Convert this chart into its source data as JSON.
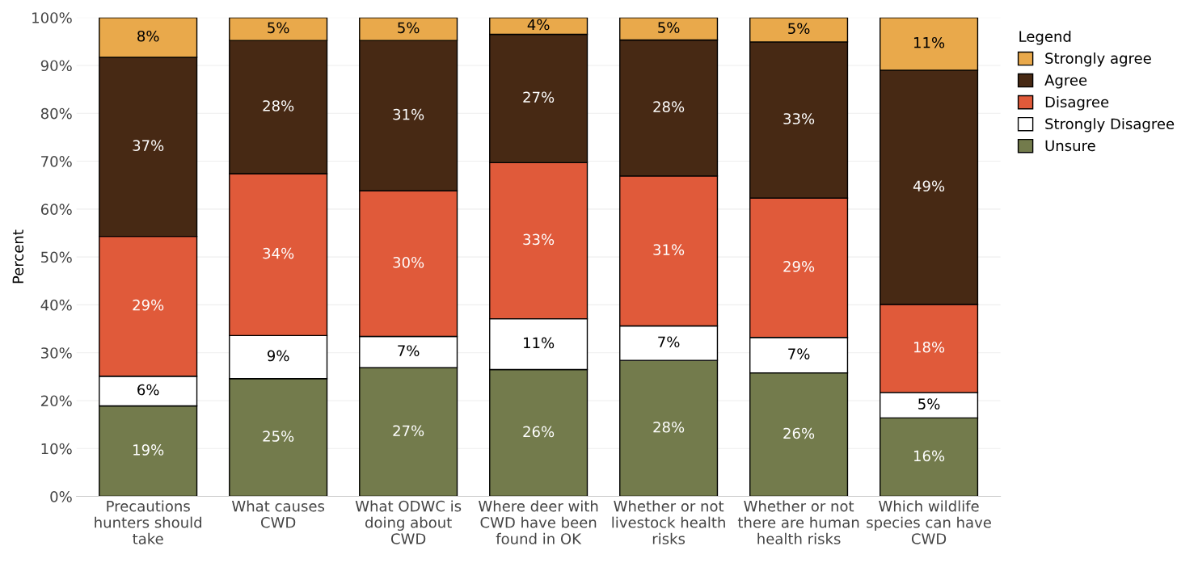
{
  "chart_data": {
    "type": "bar",
    "stacked": true,
    "ylabel": "Percent",
    "legend_title": "Legend",
    "legend": "top right",
    "grid": "y",
    "categories": [
      "Precautions\nhunters should\ntake",
      "What causes\nCWD",
      "What ODWC is\ndoing about\nCWD",
      "Where deer with\nCWD have been\nfound in OK",
      "Whether or not\nlivestock health\nrisks",
      "Whether or not\nthere are human\nhealth risks",
      "Which wildlife\nspecies can have\nCWD"
    ],
    "ylim": [
      0,
      100
    ],
    "yticks": [
      {
        "value": 0,
        "label": "0%"
      },
      {
        "value": 10,
        "label": "10%"
      },
      {
        "value": 20,
        "label": "20%"
      },
      {
        "value": 30,
        "label": "30%"
      },
      {
        "value": 40,
        "label": "40%"
      },
      {
        "value": 50,
        "label": "50%"
      },
      {
        "value": 60,
        "label": "60%"
      },
      {
        "value": 70,
        "label": "70%"
      },
      {
        "value": 80,
        "label": "80%"
      },
      {
        "value": 90,
        "label": "90%"
      },
      {
        "value": 100,
        "label": "100%"
      }
    ],
    "series": [
      {
        "name": "Unsure",
        "color": "#737b4c",
        "values": [
          18.9,
          24.6,
          26.9,
          26.5,
          28.4,
          25.8,
          16.4
        ],
        "value_labels": [
          "19%",
          "25%",
          "27%",
          "26%",
          "28%",
          "26%",
          "16%"
        ]
      },
      {
        "name": "Strongly Disagree",
        "color": "#ffffff",
        "values": [
          6.2,
          9.0,
          6.5,
          10.6,
          7.2,
          7.4,
          5.3
        ],
        "value_labels": [
          "6%",
          "9%",
          "7%",
          "11%",
          "7%",
          "7%",
          "5%"
        ]
      },
      {
        "name": "Disagree",
        "color": "#e05a3a",
        "values": [
          29.2,
          33.8,
          30.4,
          32.6,
          31.3,
          29.1,
          18.4
        ],
        "value_labels": [
          "29%",
          "34%",
          "30%",
          "33%",
          "31%",
          "29%",
          "18%"
        ]
      },
      {
        "name": "Agree",
        "color": "#472914",
        "values": [
          37.4,
          27.8,
          31.4,
          26.8,
          28.4,
          32.6,
          48.9
        ],
        "value_labels": [
          "37%",
          "28%",
          "31%",
          "27%",
          "28%",
          "33%",
          "49%"
        ]
      },
      {
        "name": "Strongly agree",
        "color": "#e9a94b",
        "values": [
          8.3,
          4.8,
          4.8,
          3.5,
          4.7,
          5.1,
          11.0
        ],
        "value_labels": [
          "8%",
          "5%",
          "5%",
          "4%",
          "5%",
          "5%",
          "11%"
        ]
      }
    ]
  }
}
